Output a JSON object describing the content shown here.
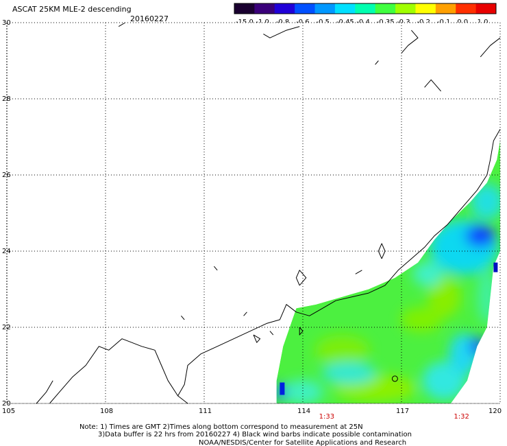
{
  "header": {
    "title": "ASCAT 25KM MLE-2 descending",
    "date": "20160227"
  },
  "colorbar": {
    "labels": [
      "-15.0",
      "-1.0",
      "-0.8",
      "-0.6",
      "-0.5",
      "-0.45",
      "-0.4",
      "-0.35",
      "-0.3",
      "-0.2",
      "-0.1",
      "0.0",
      "1.0"
    ],
    "colors": [
      "#1a0030",
      "#3a007a",
      "#2000d8",
      "#0050ff",
      "#0098ff",
      "#00e0ff",
      "#00ffb0",
      "#40ff40",
      "#a0ff00",
      "#ffff00",
      "#ffa000",
      "#ff3000",
      "#e80000"
    ]
  },
  "chart_data": {
    "type": "heatmap",
    "title": "ASCAT 25KM MLE-2 descending",
    "x_ticks": [
      "105",
      "108",
      "111",
      "114",
      "117",
      "120"
    ],
    "y_ticks": [
      "20",
      "22",
      "24",
      "26",
      "28",
      "30"
    ],
    "xlim": [
      105,
      120
    ],
    "ylim": [
      20,
      30
    ],
    "grid": true,
    "grid_style": "dotted",
    "pass_times": [
      {
        "lon": 114.7,
        "label": "1:33"
      },
      {
        "lon": 118.8,
        "label": "1:32"
      }
    ],
    "swath": {
      "polygon": [
        [
          113.2,
          20.0
        ],
        [
          113.2,
          20.6
        ],
        [
          113.4,
          21.5
        ],
        [
          113.8,
          22.5
        ],
        [
          114.4,
          22.6
        ],
        [
          115.2,
          22.8
        ],
        [
          116.0,
          23.0
        ],
        [
          116.8,
          23.3
        ],
        [
          117.5,
          23.7
        ],
        [
          118.0,
          24.3
        ],
        [
          118.5,
          24.8
        ],
        [
          119.1,
          25.3
        ],
        [
          119.6,
          25.8
        ],
        [
          119.9,
          26.4
        ],
        [
          120.0,
          26.9
        ],
        [
          120.0,
          24.0
        ],
        [
          119.8,
          23.6
        ],
        [
          119.6,
          22.0
        ],
        [
          119.3,
          21.5
        ],
        [
          119.0,
          20.6
        ],
        [
          118.5,
          20.0
        ]
      ],
      "regions": [
        {
          "name": "green-field",
          "value": -0.35
        },
        {
          "name": "lime-patches",
          "value": -0.3
        },
        {
          "name": "cyan-band",
          "value": -0.45
        },
        {
          "name": "blue-core-north",
          "value": -0.6
        },
        {
          "name": "blue-core-southeast",
          "value": -0.6
        },
        {
          "name": "dark-edge-cells",
          "value": -1.0
        }
      ]
    }
  },
  "footer": {
    "line1": "Note: 1) Times are GMT 2)Times along bottom correspond to measurement at 25N",
    "line2": "3)Data buffer is 22 hrs from 20160227 4) Black wind barbs indicate possible contamination",
    "line3": "NOAA/NESDIS/Center for Satellite Applications and Research"
  }
}
